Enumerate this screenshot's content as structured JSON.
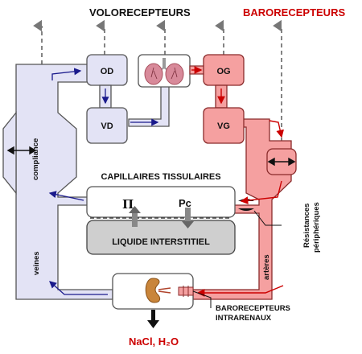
{
  "title_volorecepteurs": "VOLORECEPTEURS",
  "title_barorecepteurs": "BARORECEPTEURS",
  "chambers": {
    "od": "OD",
    "vd": "VD",
    "og": "OG",
    "vg": "VG"
  },
  "labels": {
    "compliance": "compliance",
    "veines": "veines",
    "arteres": "artères",
    "capillaires": "CAPILLAIRES TISSULAIRES",
    "pi": "Π",
    "pc": "Pc",
    "liquide": "LIQUIDE INTERSTITIEL",
    "resistances_line1": "Résistances",
    "resistances_line2": "périphériques",
    "baro_intra_line1": "BARORECEPTEURS",
    "baro_intra_line2": "INTRARENAUX",
    "excretion": "NaCl, H₂O"
  },
  "icons": [
    "lungs-icon",
    "kidney-icon"
  ],
  "colors": {
    "venous": "#e3e3f5",
    "venous_border": "#555555",
    "arterial": "#f5a0a0",
    "arterial_border": "#8a2b2b",
    "interstitial": "#cfcfcf",
    "arrow_blue": "#1a1a8c",
    "arrow_red": "#cc0000",
    "dashed_arrow": "#777777"
  }
}
